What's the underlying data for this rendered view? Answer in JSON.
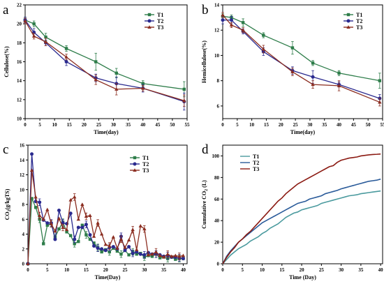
{
  "chart_data": [
    {
      "panel_label": "a",
      "type": "line",
      "xlabel": "Time(day)",
      "ylabel": "Cellulose(%)",
      "xlim": [
        0,
        55
      ],
      "ylim": [
        10,
        22
      ],
      "xticks": [
        "0",
        "5",
        "10",
        "15",
        "20",
        "25",
        "30",
        "35",
        "40",
        "45",
        "50",
        "55"
      ],
      "yticks": [
        "10",
        "12",
        "14",
        "16",
        "18",
        "20",
        "22"
      ],
      "legend_position": "top-right",
      "error_bars": true,
      "series": [
        {
          "name": "T1",
          "color": "#2e7d4a",
          "marker": "square",
          "x": [
            0,
            3,
            7,
            14,
            24,
            31,
            40,
            54
          ],
          "y": [
            20.4,
            20.0,
            18.6,
            17.4,
            16.0,
            14.8,
            13.7,
            13.1
          ],
          "err": [
            0.3,
            0.3,
            0.4,
            0.3,
            0.9,
            0.5,
            0.3,
            0.8
          ]
        },
        {
          "name": "T2",
          "color": "#2a2a8f",
          "marker": "circle",
          "x": [
            0,
            3,
            7,
            14,
            24,
            31,
            40,
            54
          ],
          "y": [
            20.4,
            19.1,
            18.0,
            16.0,
            14.3,
            13.7,
            13.2,
            11.8
          ],
          "err": [
            0.3,
            0.4,
            0.3,
            0.4,
            0.4,
            0.7,
            0.4,
            0.9
          ]
        },
        {
          "name": "T3",
          "color": "#8b2d20",
          "marker": "triangle",
          "x": [
            0,
            3,
            7,
            14,
            24,
            31,
            40,
            54
          ],
          "y": [
            20.3,
            18.7,
            18.1,
            16.5,
            14.1,
            13.1,
            13.2,
            11.9
          ],
          "err": [
            0.3,
            0.3,
            0.4,
            0.3,
            0.5,
            0.6,
            0.3,
            0.6
          ]
        }
      ]
    },
    {
      "panel_label": "b",
      "type": "line",
      "xlabel": "Time(day)",
      "ylabel": "Hemicellulose(%)",
      "xlim": [
        0,
        55
      ],
      "ylim": [
        5,
        14
      ],
      "xticks": [
        "0",
        "5",
        "10",
        "15",
        "20",
        "25",
        "30",
        "35",
        "40",
        "45",
        "50",
        "55"
      ],
      "yticks": [
        "6",
        "8",
        "10",
        "12",
        "14"
      ],
      "legend_position": "top-right",
      "error_bars": true,
      "series": [
        {
          "name": "T1",
          "color": "#2e7d4a",
          "marker": "square",
          "x": [
            0,
            3,
            7,
            14,
            24,
            31,
            40,
            54
          ],
          "y": [
            13.1,
            13.0,
            12.6,
            11.6,
            10.6,
            9.4,
            8.6,
            8.0
          ],
          "err": [
            0.2,
            0.2,
            0.3,
            0.2,
            0.5,
            0.2,
            0.2,
            0.6
          ]
        },
        {
          "name": "T2",
          "color": "#2a2a8f",
          "marker": "circle",
          "x": [
            0,
            3,
            7,
            14,
            24,
            31,
            40,
            54
          ],
          "y": [
            12.8,
            12.8,
            11.9,
            10.3,
            8.8,
            8.3,
            7.7,
            6.6
          ],
          "err": [
            0.3,
            0.3,
            0.2,
            0.3,
            0.3,
            0.5,
            0.2,
            0.3
          ]
        },
        {
          "name": "T3",
          "color": "#8b2d20",
          "marker": "triangle",
          "x": [
            0,
            3,
            7,
            14,
            24,
            31,
            40,
            54
          ],
          "y": [
            13.2,
            12.4,
            12.0,
            10.5,
            8.7,
            7.7,
            7.6,
            6.3
          ],
          "err": [
            0.2,
            0.2,
            0.2,
            0.3,
            0.3,
            0.3,
            0.4,
            0.3
          ]
        }
      ]
    },
    {
      "panel_label": "c",
      "type": "line",
      "xlabel": "Time(Day)",
      "ylabel": "CO2(g/kgTS)",
      "xlim": [
        0,
        41
      ],
      "ylim": [
        0,
        16
      ],
      "xticks": [
        "0",
        "5",
        "10",
        "15",
        "20",
        "25",
        "30",
        "35",
        "40"
      ],
      "yticks": [
        "0",
        "2",
        "4",
        "6",
        "8",
        "10",
        "12",
        "14",
        "16"
      ],
      "legend_position": "top-right",
      "error_bars": true,
      "series": [
        {
          "name": "T1",
          "color": "#2e7d4a",
          "marker": "square",
          "x": [
            0,
            1,
            2,
            3,
            4,
            5,
            6,
            7,
            8,
            9,
            10,
            11,
            12,
            13,
            14,
            15,
            16,
            17,
            18,
            19,
            20,
            21,
            22,
            23,
            24,
            25,
            26,
            27,
            28,
            29,
            30,
            31,
            32,
            33,
            34,
            35,
            36,
            37,
            38,
            39,
            40
          ],
          "y": [
            0,
            8.8,
            7.6,
            6.0,
            2.7,
            5.2,
            5.4,
            3.6,
            4.7,
            5.6,
            4.3,
            3.8,
            2.7,
            3.0,
            5.2,
            3.9,
            3.3,
            2.8,
            2.2,
            1.6,
            1.9,
            1.6,
            2.1,
            1.7,
            1.3,
            1.8,
            1.2,
            1.6,
            1.3,
            1.4,
            0.9,
            1.1,
            1.0,
            1.3,
            0.8,
            0.9,
            0.7,
            0.9,
            0.6,
            0.7,
            0.7
          ],
          "err_every": 3
        },
        {
          "name": "T2",
          "color": "#2a2a8f",
          "marker": "circle",
          "x": [
            0,
            1,
            2,
            3,
            4,
            5,
            6,
            7,
            8,
            9,
            10,
            11,
            12,
            13,
            14,
            15,
            16,
            17,
            18,
            19,
            20,
            21,
            22,
            23,
            24,
            25,
            26,
            27,
            28,
            29,
            30,
            31,
            32,
            33,
            34,
            35,
            36,
            37,
            38,
            39,
            40
          ],
          "y": [
            0,
            14.8,
            8.4,
            8.3,
            5.9,
            5.5,
            5.5,
            3.3,
            7.2,
            5.5,
            5.4,
            6.8,
            3.3,
            4.9,
            4.9,
            5.3,
            3.9,
            2.4,
            2.1,
            2.0,
            1.8,
            2.2,
            2.3,
            2.0,
            3.7,
            1.8,
            2.3,
            1.4,
            1.6,
            1.3,
            1.2,
            1.5,
            1.3,
            1.3,
            1.2,
            1.0,
            1.1,
            0.9,
            0.9,
            0.8,
            0.7
          ],
          "err_every": 3
        },
        {
          "name": "T3",
          "color": "#8b2d20",
          "marker": "triangle",
          "x": [
            0,
            1,
            2,
            3,
            4,
            5,
            6,
            7,
            8,
            9,
            10,
            11,
            12,
            13,
            14,
            15,
            16,
            17,
            18,
            19,
            20,
            21,
            22,
            23,
            24,
            25,
            26,
            27,
            28,
            29,
            30,
            31,
            32,
            33,
            34,
            35,
            36,
            37,
            38,
            39,
            40
          ],
          "y": [
            0,
            12.6,
            9.0,
            6.5,
            6.0,
            7.3,
            5.4,
            4.4,
            6.1,
            4.9,
            4.6,
            8.6,
            9.0,
            6.0,
            8.0,
            6.4,
            6.5,
            3.7,
            5.5,
            4.0,
            2.6,
            2.4,
            3.6,
            2.1,
            3.3,
            2.2,
            3.2,
            4.6,
            1.9,
            5.1,
            4.7,
            1.2,
            1.3,
            1.6,
            1.1,
            0.9,
            1.3,
            1.0,
            1.1,
            1.0,
            1.1
          ],
          "err_every": 3
        }
      ]
    },
    {
      "panel_label": "d",
      "type": "line",
      "xlabel": "Time (Day)",
      "ylabel": "Cumulative CO2 (L)",
      "xlim": [
        0,
        40.5
      ],
      "ylim": [
        0,
        110
      ],
      "xticks": [
        "0",
        "5",
        "10",
        "15",
        "20",
        "25",
        "30",
        "35",
        "40"
      ],
      "yticks": [
        "0",
        "20",
        "40",
        "60",
        "80",
        "100"
      ],
      "legend_position": "top-left",
      "error_bars": false,
      "series": [
        {
          "name": "T1",
          "color": "#4a9a9e",
          "marker": "none",
          "x": [
            0,
            1,
            2,
            3,
            4,
            5,
            6,
            7,
            8,
            9,
            10,
            11,
            12,
            13,
            14,
            15,
            16,
            17,
            18,
            19,
            20,
            21,
            22,
            23,
            24,
            25,
            26,
            27,
            28,
            29,
            30,
            31,
            32,
            33,
            34,
            35,
            36,
            37,
            38,
            39,
            40
          ],
          "y": [
            0,
            4,
            8,
            11,
            14,
            16,
            18,
            21,
            23,
            25,
            28,
            30,
            33,
            35,
            37,
            40,
            43,
            45,
            47,
            48,
            50,
            51,
            52,
            53,
            54,
            56,
            57,
            58,
            59,
            60,
            61,
            62,
            63,
            63.5,
            64,
            65,
            65.5,
            66,
            66.5,
            67,
            67.5
          ]
        },
        {
          "name": "T2",
          "color": "#2a5b9a",
          "marker": "none",
          "x": [
            0,
            1,
            2,
            3,
            4,
            5,
            6,
            7,
            8,
            9,
            10,
            11,
            12,
            13,
            14,
            15,
            16,
            17,
            18,
            19,
            20,
            21,
            22,
            23,
            24,
            25,
            26,
            27,
            28,
            29,
            30,
            31,
            32,
            33,
            34,
            35,
            36,
            37,
            38,
            39,
            40
          ],
          "y": [
            0,
            7,
            12,
            16,
            20,
            23,
            26,
            29,
            32,
            35,
            38,
            40,
            42,
            44,
            46,
            48,
            50,
            52,
            54,
            56,
            57,
            58,
            60,
            61,
            62,
            63,
            65,
            66,
            67,
            68,
            69.5,
            70.5,
            71.5,
            72.5,
            73.5,
            74.5,
            75.5,
            76.5,
            77,
            77.5,
            78.5
          ]
        },
        {
          "name": "T3",
          "color": "#8b1a12",
          "marker": "none",
          "x": [
            0,
            1,
            2,
            3,
            4,
            5,
            6,
            7,
            8,
            9,
            10,
            11,
            12,
            13,
            14,
            15,
            16,
            17,
            18,
            19,
            20,
            21,
            22,
            23,
            24,
            25,
            26,
            27,
            28,
            29,
            30,
            31,
            32,
            33,
            34,
            35,
            36,
            37,
            38,
            39,
            40
          ],
          "y": [
            0,
            6,
            11,
            15,
            20,
            23,
            27,
            30,
            34,
            38,
            42,
            46,
            50,
            54,
            58,
            61,
            65,
            68,
            71,
            74,
            76,
            78,
            80,
            82,
            84,
            86,
            88,
            90,
            91,
            94,
            96,
            97,
            98,
            98.5,
            99,
            100,
            100.5,
            101,
            101.3,
            101.5,
            101.8
          ]
        }
      ]
    }
  ]
}
